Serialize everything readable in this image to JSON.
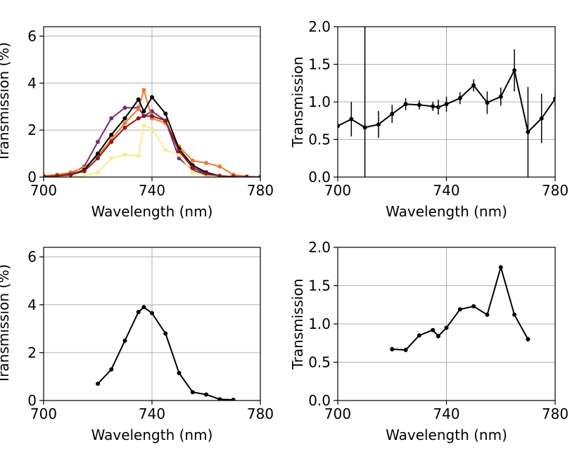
{
  "chart_data": [
    {
      "type": "line",
      "xlabel": "Wavelength (nm)",
      "ylabel": "Transmission (%)",
      "xlim": [
        700,
        780
      ],
      "xticks": [
        700,
        740,
        780
      ],
      "ylim": [
        0,
        6.4
      ],
      "yticks": [
        0,
        2,
        4,
        6
      ],
      "grid": true,
      "x": [
        700,
        705,
        710,
        715,
        720,
        725,
        730,
        735,
        737,
        740,
        745,
        750,
        755,
        760,
        765,
        770,
        775,
        780
      ],
      "series": [
        {
          "color": "#7b2a7d",
          "values": [
            0.05,
            0.08,
            0.15,
            0.45,
            1.5,
            2.5,
            2.95,
            2.95,
            2.6,
            2.8,
            2.4,
            0.8,
            0.3,
            0.1,
            0.03,
            0.02,
            0.01,
            0
          ]
        },
        {
          "color": "#f07a2a",
          "values": [
            0.05,
            0.1,
            0.2,
            0.4,
            0.9,
            1.6,
            2.3,
            2.9,
            3.7,
            2.5,
            2.3,
            1.3,
            0.7,
            0.6,
            0.45,
            0.1,
            0.02,
            0
          ]
        },
        {
          "color": "#f7ec8f",
          "values": [
            0,
            0,
            0.02,
            0.05,
            0.2,
            0.8,
            0.95,
            0.9,
            2.2,
            2.05,
            1.15,
            0.95,
            0.2,
            0.05,
            0.02,
            0,
            0,
            0
          ]
        },
        {
          "color": "#000000",
          "values": [
            0.02,
            0.05,
            0.1,
            0.3,
            1.0,
            1.8,
            2.5,
            3.3,
            2.8,
            3.4,
            2.7,
            1.2,
            0.5,
            0.2,
            0.05,
            0.02,
            0.01,
            0
          ]
        },
        {
          "color": "#8b1a1a",
          "values": [
            0.02,
            0.05,
            0.1,
            0.25,
            0.8,
            1.5,
            2.1,
            2.5,
            2.6,
            2.6,
            2.4,
            1.1,
            0.4,
            0.15,
            0.05,
            0.02,
            0.01,
            0
          ]
        }
      ]
    },
    {
      "type": "errorbar",
      "xlabel": "Wavelength (nm)",
      "ylabel": "Transmission",
      "xlim": [
        700,
        780
      ],
      "xticks": [
        700,
        740,
        780
      ],
      "ylim": [
        0,
        2
      ],
      "yticks": [
        {
          "value": 0,
          "label": "0.0"
        },
        {
          "value": 0.5,
          "label": "0.5"
        },
        {
          "value": 1,
          "label": "1.0"
        },
        {
          "value": 1.5,
          "label": "1.5"
        },
        {
          "value": 2,
          "label": "2.0"
        }
      ],
      "grid": true,
      "color": "#000000",
      "x": [
        700,
        705,
        710,
        715,
        720,
        725,
        730,
        735,
        737,
        740,
        745,
        750,
        755,
        760,
        765,
        770,
        775,
        780
      ],
      "values": [
        0.68,
        0.77,
        0.66,
        0.7,
        0.84,
        0.97,
        0.96,
        0.94,
        0.93,
        0.97,
        1.05,
        1.22,
        0.99,
        1.07,
        1.42,
        0.6,
        0.78,
        1.04
      ],
      "errors": [
        0.02,
        0.23,
        1.5,
        0.18,
        0.12,
        0.08,
        0.06,
        0.06,
        0.1,
        0.1,
        0.08,
        0.08,
        0.15,
        0.12,
        0.28,
        0.6,
        0.33,
        0.1
      ]
    },
    {
      "type": "line",
      "xlabel": "Wavelength (nm)",
      "ylabel": "Transmission (%)",
      "xlim": [
        700,
        780
      ],
      "xticks": [
        700,
        740,
        780
      ],
      "ylim": [
        0,
        6.4
      ],
      "yticks": [
        0,
        2,
        4,
        6
      ],
      "grid": true,
      "x": [
        720,
        725,
        730,
        735,
        737,
        740,
        745,
        750,
        755,
        760,
        765,
        770
      ],
      "series": [
        {
          "color": "#000000",
          "values": [
            0.7,
            1.3,
            2.5,
            3.7,
            3.9,
            3.65,
            2.8,
            1.15,
            0.35,
            0.25,
            0.05,
            0.03
          ]
        }
      ]
    },
    {
      "type": "errorbar",
      "xlabel": "Wavelength (nm)",
      "ylabel": "Transmission",
      "xlim": [
        700,
        780
      ],
      "xticks": [
        700,
        740,
        780
      ],
      "ylim": [
        0,
        2
      ],
      "yticks": [
        {
          "value": 0,
          "label": "0.0"
        },
        {
          "value": 0.5,
          "label": "0.5"
        },
        {
          "value": 1,
          "label": "1.0"
        },
        {
          "value": 1.5,
          "label": "1.5"
        },
        {
          "value": 2,
          "label": "2.0"
        }
      ],
      "grid": true,
      "color": "#000000",
      "x": [
        720,
        725,
        730,
        735,
        737,
        740,
        745,
        750,
        755,
        760,
        765,
        770
      ],
      "values": [
        0.67,
        0.66,
        0.85,
        0.92,
        0.84,
        0.95,
        1.19,
        1.23,
        1.12,
        1.74,
        1.12,
        0.8
      ],
      "errors": [
        0.03,
        0.03,
        0.02,
        0.02,
        0.03,
        0.02,
        0.02,
        0.02,
        0.02,
        0.02,
        0.02,
        0.03
      ]
    }
  ]
}
